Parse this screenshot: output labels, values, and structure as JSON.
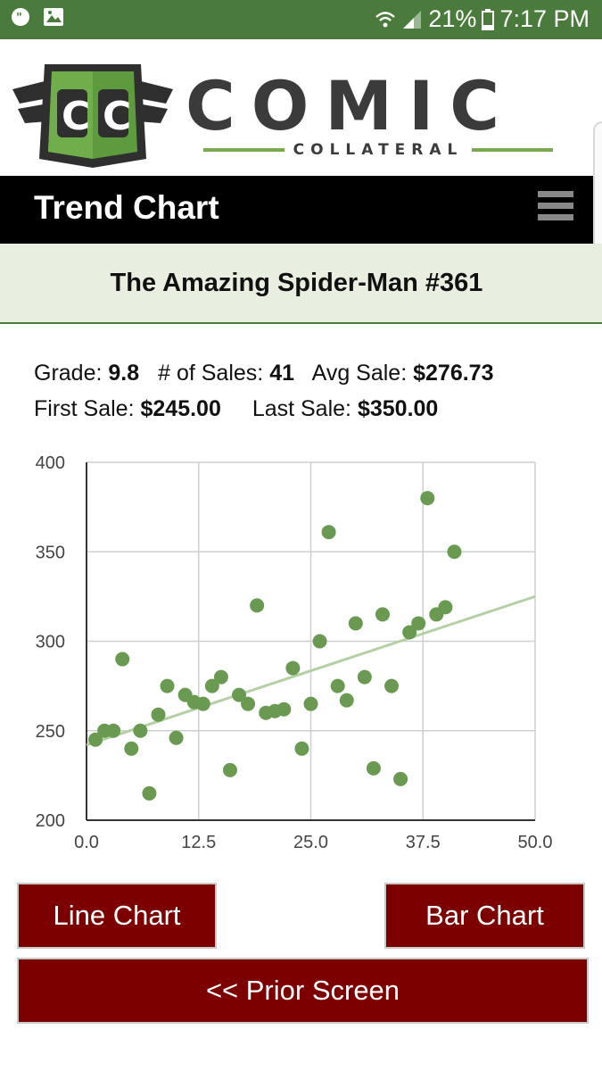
{
  "status_bar": {
    "battery": "21%",
    "time": "7:17 PM",
    "icons": [
      "chat-bubble-icon",
      "image-icon",
      "wifi-icon",
      "signal-icon",
      "battery-icon"
    ]
  },
  "brand": {
    "badge_text": "CC",
    "name": "COMIC",
    "tagline": "COLLATERAL"
  },
  "header": {
    "title": "Trend Chart",
    "menu_icon": "hamburger-icon"
  },
  "comic": {
    "title": "The Amazing Spider-Man #361"
  },
  "stats": {
    "grade_label": "Grade:",
    "grade": "9.8",
    "sales_label": "# of Sales:",
    "sales": "41",
    "avg_label": "Avg Sale:",
    "avg": "$276.73",
    "first_label": "First Sale:",
    "first": "$245.00",
    "last_label": "Last Sale:",
    "last": "$350.00"
  },
  "chart_data": {
    "type": "scatter",
    "title": "",
    "xlabel": "",
    "ylabel": "",
    "xlim": [
      0,
      50
    ],
    "ylim": [
      200,
      400
    ],
    "x_ticks": [
      "0.0",
      "12.5",
      "25.0",
      "37.5",
      "50.0"
    ],
    "y_ticks": [
      "200",
      "250",
      "300",
      "350",
      "400"
    ],
    "grid": true,
    "legend": "none",
    "point_color": "#6a9a52",
    "trendline_color": "#b5d0a4",
    "trendline": {
      "x": [
        0,
        50
      ],
      "y": [
        242,
        325
      ]
    },
    "points": [
      {
        "x": 1,
        "y": 245
      },
      {
        "x": 2,
        "y": 250
      },
      {
        "x": 3,
        "y": 250
      },
      {
        "x": 4,
        "y": 290
      },
      {
        "x": 5,
        "y": 240
      },
      {
        "x": 6,
        "y": 250
      },
      {
        "x": 7,
        "y": 215
      },
      {
        "x": 8,
        "y": 259
      },
      {
        "x": 9,
        "y": 275
      },
      {
        "x": 10,
        "y": 246
      },
      {
        "x": 11,
        "y": 270
      },
      {
        "x": 12,
        "y": 266
      },
      {
        "x": 13,
        "y": 265
      },
      {
        "x": 14,
        "y": 275
      },
      {
        "x": 15,
        "y": 280
      },
      {
        "x": 16,
        "y": 228
      },
      {
        "x": 17,
        "y": 270
      },
      {
        "x": 18,
        "y": 265
      },
      {
        "x": 19,
        "y": 320
      },
      {
        "x": 20,
        "y": 260
      },
      {
        "x": 21,
        "y": 261
      },
      {
        "x": 22,
        "y": 262
      },
      {
        "x": 23,
        "y": 285
      },
      {
        "x": 24,
        "y": 240
      },
      {
        "x": 25,
        "y": 265
      },
      {
        "x": 26,
        "y": 300
      },
      {
        "x": 27,
        "y": 361
      },
      {
        "x": 28,
        "y": 275
      },
      {
        "x": 29,
        "y": 267
      },
      {
        "x": 30,
        "y": 310
      },
      {
        "x": 31,
        "y": 280
      },
      {
        "x": 32,
        "y": 229
      },
      {
        "x": 33,
        "y": 315
      },
      {
        "x": 34,
        "y": 275
      },
      {
        "x": 35,
        "y": 223
      },
      {
        "x": 36,
        "y": 305
      },
      {
        "x": 37,
        "y": 310
      },
      {
        "x": 38,
        "y": 380
      },
      {
        "x": 39,
        "y": 315
      },
      {
        "x": 40,
        "y": 319
      },
      {
        "x": 41,
        "y": 350
      }
    ]
  },
  "buttons": {
    "line_chart": "Line Chart",
    "bar_chart": "Bar Chart",
    "prior_screen": "<< Prior Screen"
  }
}
